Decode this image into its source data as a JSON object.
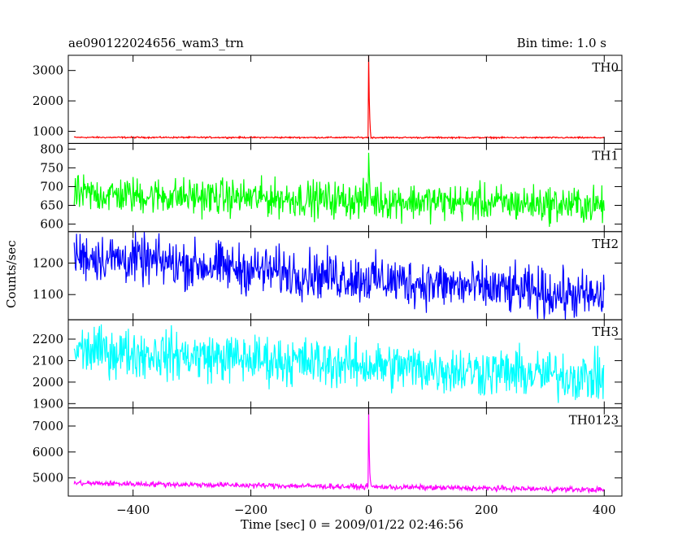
{
  "header": {
    "title": "ae090122024656_wam3_trn",
    "bin_time": "Bin time: 1.0 s"
  },
  "chart_data": {
    "type": "line",
    "xlabel": "Time [sec] 0 = 2009/01/22 02:46:56",
    "ylabel": "Counts/sec",
    "xlim": [
      -510,
      430
    ],
    "x_ticks": [
      -400,
      -200,
      0,
      200,
      400
    ],
    "x": {
      "start": -500,
      "end": 400,
      "step": 1
    },
    "colors": {
      "TH0": "#ff0000",
      "TH1": "#00ff00",
      "TH2": "#0000ff",
      "TH3": "#00ffff",
      "TH0123": "#ff00ff"
    },
    "panels": [
      {
        "name": "TH0",
        "ylim": [
          600,
          3500
        ],
        "y_ticks": [
          1000,
          2000,
          3000
        ],
        "baseline_start": 800,
        "baseline_end": 790,
        "noise": 30,
        "burst": {
          "x": 0,
          "peak": 3500,
          "after": [
            2100,
            1400,
            1000
          ]
        }
      },
      {
        "name": "TH1",
        "ylim": [
          580,
          815
        ],
        "y_ticks": [
          600,
          650,
          700,
          750,
          800
        ],
        "baseline_start": 680,
        "baseline_end": 650,
        "noise": 60,
        "burst": {
          "x": 0,
          "peak": 790,
          "after": [
            740,
            700
          ]
        }
      },
      {
        "name": "TH2",
        "ylim": [
          1020,
          1300
        ],
        "y_ticks": [
          1100,
          1200
        ],
        "baseline_start": 1225,
        "baseline_end": 1090,
        "noise": 95,
        "burst": null
      },
      {
        "name": "TH3",
        "ylim": [
          1880,
          2290
        ],
        "y_ticks": [
          1900,
          2000,
          2100,
          2200
        ],
        "baseline_start": 2150,
        "baseline_end": 2020,
        "noise": 140,
        "burst": null
      },
      {
        "name": "TH0123",
        "ylim": [
          4300,
          7700
        ],
        "y_ticks": [
          5000,
          6000,
          7000
        ],
        "baseline_start": 4800,
        "baseline_end": 4540,
        "noise": 130,
        "burst": {
          "x": 0,
          "peak": 7700,
          "after": [
            6100,
            5200,
            4900
          ]
        }
      }
    ]
  }
}
